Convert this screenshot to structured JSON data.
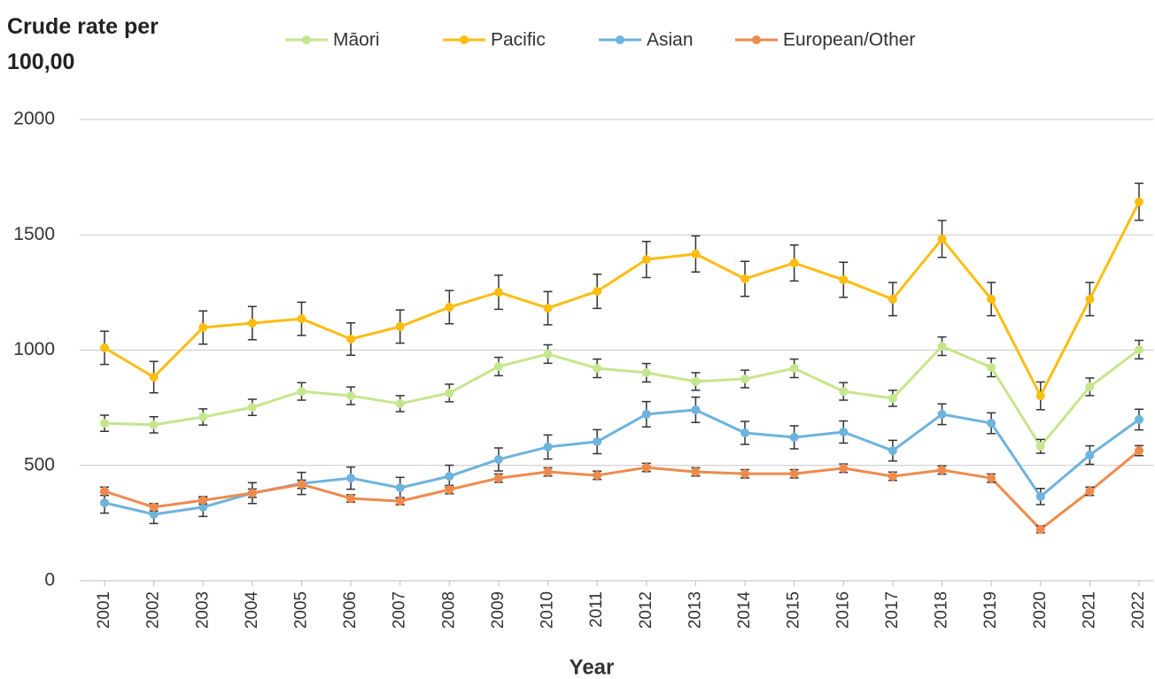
{
  "chart_data": {
    "type": "line",
    "title": "Crude rate per 100,00",
    "x_label": "Year",
    "categories": [
      "2001",
      "2002",
      "2003",
      "2004",
      "2005",
      "2006",
      "2007",
      "2008",
      "2009",
      "2010",
      "2011",
      "2012",
      "2013",
      "2014",
      "2015",
      "2016",
      "2017",
      "2018",
      "2019",
      "2020",
      "2021",
      "2022"
    ],
    "ylim": [
      0,
      2000
    ],
    "yticks": [
      0,
      500,
      1000,
      1500,
      2000
    ],
    "grid": true,
    "legend": "top",
    "series": [
      {
        "name": "Māori",
        "color": "#c5e68c",
        "values": [
          683,
          676,
          710,
          752,
          821,
          802,
          768,
          814,
          929,
          983,
          921,
          902,
          864,
          875,
          921,
          821,
          791,
          1017,
          925,
          583,
          841,
          1002
        ],
        "errors": [
          35,
          35,
          35,
          35,
          38,
          38,
          35,
          38,
          40,
          40,
          40,
          40,
          38,
          38,
          40,
          38,
          35,
          40,
          40,
          30,
          38,
          40
        ]
      },
      {
        "name": "Pacific",
        "color": "#fbbd12",
        "values": [
          1010,
          883,
          1098,
          1117,
          1136,
          1048,
          1102,
          1186,
          1251,
          1182,
          1255,
          1393,
          1417,
          1309,
          1378,
          1305,
          1221,
          1482,
          1221,
          802,
          1221,
          1643
        ],
        "errors": [
          72,
          68,
          72,
          72,
          72,
          70,
          72,
          72,
          74,
          72,
          74,
          78,
          78,
          76,
          78,
          76,
          72,
          80,
          72,
          60,
          72,
          80
        ]
      },
      {
        "name": "Asian",
        "color": "#6db3dc",
        "values": [
          338,
          288,
          319,
          380,
          422,
          445,
          403,
          453,
          526,
          580,
          603,
          722,
          741,
          641,
          622,
          645,
          564,
          722,
          683,
          365,
          545,
          699
        ],
        "errors": [
          45,
          40,
          40,
          45,
          48,
          48,
          45,
          48,
          50,
          52,
          52,
          55,
          55,
          50,
          50,
          48,
          45,
          45,
          45,
          35,
          40,
          45
        ]
      },
      {
        "name": "European/Other",
        "color": "#ef8a4d",
        "values": [
          388,
          319,
          349,
          380,
          418,
          357,
          345,
          395,
          445,
          472,
          457,
          491,
          472,
          464,
          464,
          488,
          453,
          480,
          445,
          223,
          388,
          564
        ],
        "errors": [
          18,
          16,
          16,
          18,
          18,
          16,
          16,
          18,
          18,
          18,
          18,
          18,
          18,
          18,
          18,
          18,
          18,
          18,
          18,
          15,
          18,
          22
        ]
      }
    ]
  }
}
